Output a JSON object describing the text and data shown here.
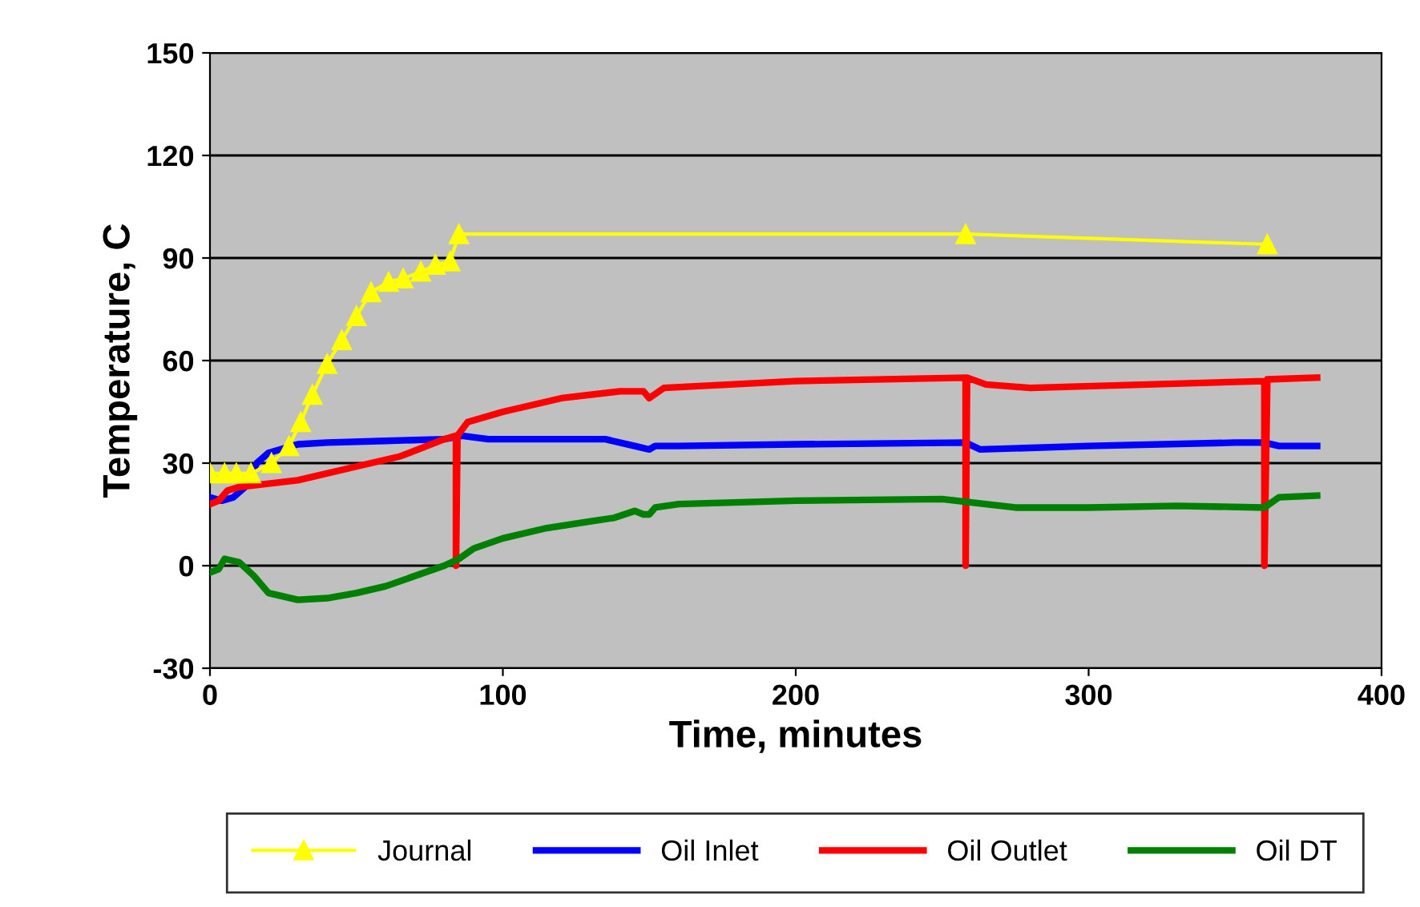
{
  "chart_data": {
    "type": "line",
    "xlabel": "Time, minutes",
    "ylabel": "Temperature, C",
    "xlim": [
      0,
      400
    ],
    "xticks": [
      0,
      100,
      200,
      300,
      400
    ],
    "ylim": [
      -30,
      150
    ],
    "yticks": [
      -30,
      0,
      30,
      60,
      90,
      120,
      150
    ],
    "grid": "y",
    "legend": "bottom",
    "line_style": "solid",
    "series": [
      {
        "name": "Journal",
        "color": "#ffff00",
        "marker": "triangle",
        "x": [
          0,
          5,
          9,
          14,
          21,
          27,
          31,
          35,
          40,
          45,
          50,
          55,
          61,
          66,
          72,
          77,
          82,
          85,
          258,
          361
        ],
        "values": [
          27,
          27,
          27,
          27,
          30,
          35,
          42,
          50,
          59,
          66,
          73,
          80,
          83,
          84,
          86,
          88,
          89,
          97,
          97,
          94
        ]
      },
      {
        "name": "Oil Inlet",
        "color": "#0000ff",
        "marker": "none",
        "x": [
          0,
          4,
          8,
          12,
          16,
          20,
          30,
          40,
          60,
          80,
          86,
          95,
          135,
          145,
          150,
          152,
          160,
          200,
          258,
          263,
          300,
          350,
          360,
          365,
          378
        ],
        "values": [
          20,
          19,
          20,
          23,
          30,
          33,
          35.5,
          36,
          36.5,
          37,
          38,
          37,
          37,
          35,
          34,
          35,
          35,
          35.5,
          36,
          34,
          35,
          36,
          36,
          35,
          35
        ]
      },
      {
        "name": "Oil Outlet",
        "color": "#ff0000",
        "marker": "none",
        "x": [
          0,
          3,
          6,
          10,
          30,
          50,
          65,
          80,
          84,
          84,
          84.5,
          88,
          100,
          120,
          140,
          148,
          150,
          155,
          200,
          258,
          258,
          258.5,
          265,
          280,
          320,
          360,
          360,
          361,
          378
        ],
        "values": [
          18,
          19,
          22,
          23,
          25,
          29,
          32,
          37,
          38,
          0,
          38,
          42,
          45,
          49,
          51,
          51,
          49,
          52,
          54,
          55,
          0,
          55,
          53,
          52,
          53,
          54,
          0,
          54.5,
          55
        ]
      },
      {
        "name": "Oil DT",
        "color": "#008000",
        "marker": "none",
        "x": [
          0,
          3,
          5,
          10,
          15,
          20,
          30,
          40,
          50,
          60,
          70,
          80,
          85,
          90,
          100,
          115,
          130,
          138,
          145,
          148,
          150,
          152,
          160,
          200,
          250,
          260,
          275,
          300,
          330,
          360,
          365,
          378
        ],
        "values": [
          -2,
          -1,
          2,
          1,
          -3,
          -8,
          -10,
          -9.5,
          -8,
          -6,
          -3,
          0,
          2,
          5,
          8,
          11,
          13,
          14,
          16,
          15,
          15,
          17,
          18,
          19,
          19.5,
          18.5,
          17,
          17,
          17.5,
          17,
          20,
          20.5
        ]
      }
    ]
  }
}
